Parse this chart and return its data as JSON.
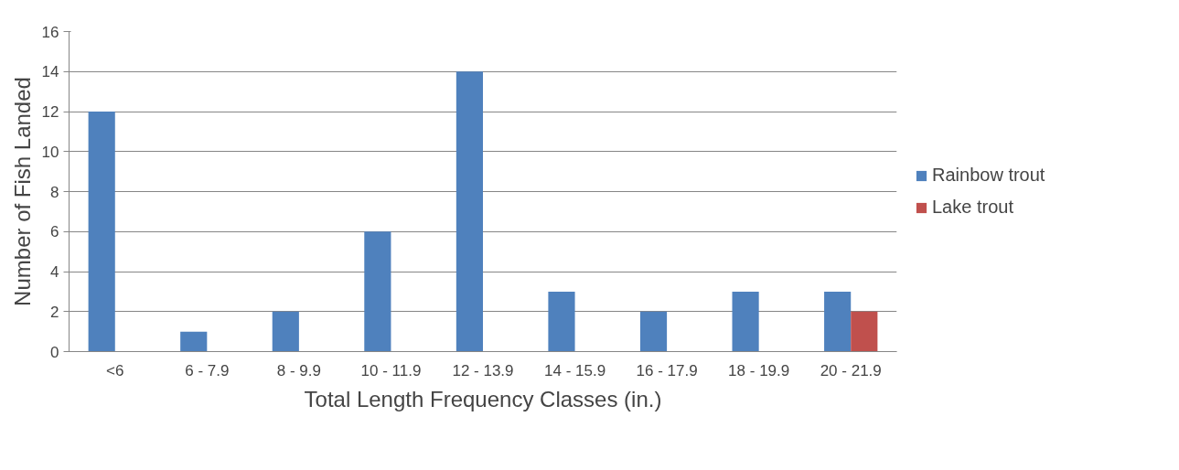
{
  "chart_data": {
    "type": "bar",
    "xlabel": "Total Length Frequency Classes (in.)",
    "ylabel": "Number of Fish Landed",
    "categories": [
      "<6",
      "6 - 7.9",
      "8 - 9.9",
      "10 - 11.9",
      "12 - 13.9",
      "14 - 15.9",
      "16 - 17.9",
      "18 - 19.9",
      "20 - 21.9"
    ],
    "series": [
      {
        "name": "Rainbow trout",
        "color": "#4f81bd",
        "values": [
          12,
          1,
          2,
          6,
          14,
          3,
          2,
          3,
          3
        ]
      },
      {
        "name": "Lake trout",
        "color": "#c0504d",
        "values": [
          null,
          null,
          null,
          null,
          null,
          null,
          null,
          null,
          2
        ]
      }
    ],
    "ylim": [
      0,
      16
    ],
    "yticks": [
      0,
      2,
      4,
      6,
      8,
      10,
      12,
      14,
      16
    ],
    "grid": "y",
    "legend": "right"
  }
}
